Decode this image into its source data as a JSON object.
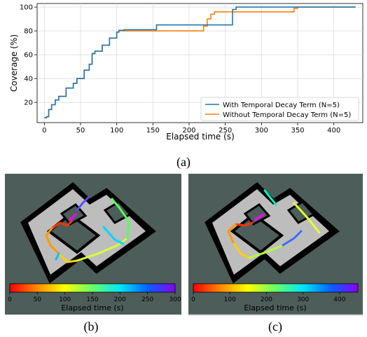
{
  "colors": {
    "with_decay": "#1f77b4",
    "without_decay": "#ff7f0e",
    "map_background": "#4d5d59",
    "wall": "#000000",
    "floor": "#bdbdbd"
  },
  "captions": {
    "a": "(a)",
    "b": "(b)",
    "c": "(c)"
  },
  "chart_data": [
    {
      "type": "line",
      "xlabel": "Elapsed time (s)",
      "ylabel": "Coverage (%)",
      "xlim": [
        -10,
        440
      ],
      "ylim": [
        3,
        103
      ],
      "xticks": [
        0,
        50,
        100,
        150,
        200,
        250,
        300,
        350,
        400
      ],
      "yticks": [
        20,
        40,
        60,
        80,
        100
      ],
      "grid": true,
      "legend": "bottom-right",
      "series": [
        {
          "name": "With Temporal Decay Term (N=5)",
          "color": "#1f77b4",
          "x": [
            0,
            3,
            6,
            10,
            15,
            20,
            30,
            40,
            45,
            55,
            62,
            66,
            70,
            80,
            90,
            100,
            103,
            110,
            150,
            155,
            250,
            260,
            265,
            350,
            430
          ],
          "y": [
            7,
            8,
            14,
            18,
            22,
            25,
            32,
            36,
            40,
            47,
            52,
            61,
            63,
            68,
            74,
            79,
            80.5,
            81,
            81,
            85,
            85,
            98,
            100,
            100,
            100
          ]
        },
        {
          "name": "Without Temporal Decay Term (N=5)",
          "color": "#ff7f0e",
          "x": [
            0,
            3,
            6,
            10,
            15,
            20,
            30,
            40,
            45,
            55,
            62,
            66,
            70,
            80,
            90,
            100,
            103,
            110,
            210,
            220,
            225,
            230,
            235,
            340,
            345,
            350,
            430
          ],
          "y": [
            7,
            8,
            14,
            18,
            22,
            25,
            32,
            36,
            40,
            47,
            52,
            61,
            63,
            68,
            74,
            79,
            80,
            80,
            80,
            84,
            90,
            94,
            96,
            96,
            99,
            100,
            100
          ]
        }
      ]
    },
    {
      "type": "heatmap",
      "colorbar_label": "Elapsed time (s)",
      "colorbar_range": [
        0,
        300
      ],
      "colorbar_ticks": [
        0,
        50,
        100,
        150,
        200,
        250,
        300
      ]
    },
    {
      "type": "heatmap",
      "colorbar_label": "Elapsed time (s)",
      "colorbar_range": [
        0,
        450
      ],
      "colorbar_ticks": [
        0,
        100,
        200,
        300,
        400
      ]
    }
  ]
}
